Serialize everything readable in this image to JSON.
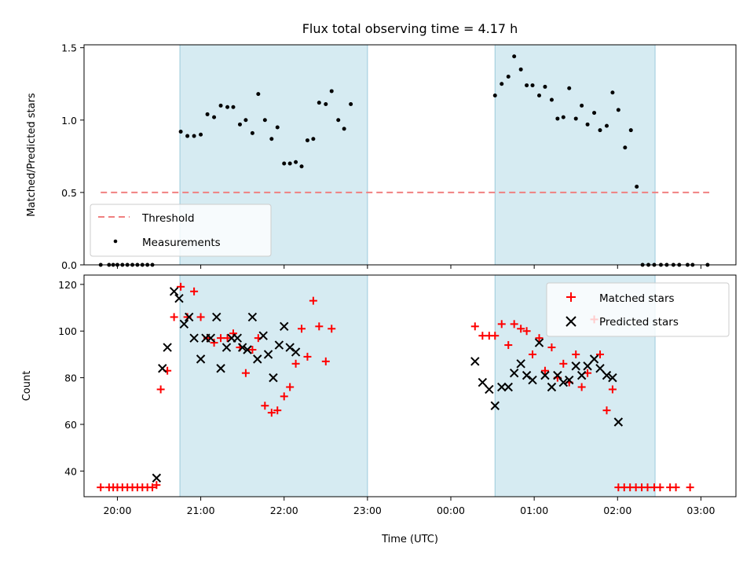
{
  "chart_data": [
    {
      "type": "scatter",
      "title": "Flux total observing time = 4.17 h",
      "xlabel": "",
      "ylabel": "Matched/Predicted stars",
      "xlim": [
        -0.4,
        7.42
      ],
      "ylim": [
        0,
        1.52
      ],
      "yticks": [
        "0.0",
        "0.5",
        "1.0",
        "1.5"
      ],
      "shaded_regions": [
        [
          0.75,
          3.0
        ],
        [
          4.53,
          6.45
        ]
      ],
      "threshold": {
        "name": "Threshold",
        "y": 0.5,
        "x_range": [
          -0.2,
          7.1
        ],
        "color": "#f08080"
      },
      "series": [
        {
          "name": "Measurements",
          "color": "#000000",
          "points": [
            [
              -0.2,
              0.0
            ],
            [
              -0.1,
              0.0
            ],
            [
              -0.05,
              0.0
            ],
            [
              0.0,
              0.0
            ],
            [
              0.06,
              0.0
            ],
            [
              0.12,
              0.0
            ],
            [
              0.18,
              0.0
            ],
            [
              0.24,
              0.0
            ],
            [
              0.3,
              0.0
            ],
            [
              0.36,
              0.0
            ],
            [
              0.42,
              0.0
            ],
            [
              0.76,
              0.92
            ],
            [
              0.84,
              0.89
            ],
            [
              0.92,
              0.89
            ],
            [
              1.0,
              0.9
            ],
            [
              1.08,
              1.04
            ],
            [
              1.16,
              1.02
            ],
            [
              1.24,
              1.1
            ],
            [
              1.32,
              1.09
            ],
            [
              1.39,
              1.09
            ],
            [
              1.47,
              0.97
            ],
            [
              1.54,
              1.0
            ],
            [
              1.62,
              0.91
            ],
            [
              1.69,
              1.18
            ],
            [
              1.77,
              1.0
            ],
            [
              1.85,
              0.87
            ],
            [
              1.92,
              0.95
            ],
            [
              2.0,
              0.7
            ],
            [
              2.07,
              0.7
            ],
            [
              2.14,
              0.71
            ],
            [
              2.21,
              0.68
            ],
            [
              2.28,
              0.86
            ],
            [
              2.35,
              0.87
            ],
            [
              2.42,
              1.12
            ],
            [
              2.5,
              1.11
            ],
            [
              2.57,
              1.2
            ],
            [
              2.65,
              1.0
            ],
            [
              2.72,
              0.94
            ],
            [
              2.8,
              1.11
            ],
            [
              4.53,
              1.17
            ],
            [
              4.61,
              1.25
            ],
            [
              4.69,
              1.3
            ],
            [
              4.76,
              1.44
            ],
            [
              4.84,
              1.35
            ],
            [
              4.91,
              1.24
            ],
            [
              4.98,
              1.24
            ],
            [
              5.06,
              1.17
            ],
            [
              5.13,
              1.23
            ],
            [
              5.21,
              1.14
            ],
            [
              5.28,
              1.01
            ],
            [
              5.35,
              1.02
            ],
            [
              5.42,
              1.22
            ],
            [
              5.5,
              1.01
            ],
            [
              5.57,
              1.1
            ],
            [
              5.64,
              0.97
            ],
            [
              5.72,
              1.05
            ],
            [
              5.79,
              0.93
            ],
            [
              5.87,
              0.96
            ],
            [
              5.94,
              1.19
            ],
            [
              6.01,
              1.07
            ],
            [
              6.09,
              0.81
            ],
            [
              6.16,
              0.93
            ],
            [
              6.23,
              0.54
            ],
            [
              6.3,
              0.0
            ],
            [
              6.37,
              0.0
            ],
            [
              6.44,
              0.0
            ],
            [
              6.52,
              0.0
            ],
            [
              6.59,
              0.0
            ],
            [
              6.67,
              0.0
            ],
            [
              6.74,
              0.0
            ],
            [
              6.84,
              0.0
            ],
            [
              6.9,
              0.0
            ],
            [
              7.08,
              0.0
            ]
          ]
        }
      ],
      "legend": {
        "position": "lower-left",
        "entries": [
          "Threshold",
          "Measurements"
        ]
      }
    },
    {
      "type": "scatter",
      "title": "",
      "xlabel": "Time (UTC)",
      "ylabel": "Count",
      "xlim": [
        -0.4,
        7.42
      ],
      "ylim": [
        29,
        124
      ],
      "yticks": [
        "40",
        "60",
        "80",
        "100",
        "120"
      ],
      "xticks": [
        "20:00",
        "21:00",
        "22:00",
        "23:00",
        "00:00",
        "01:00",
        "02:00",
        "03:00"
      ],
      "shaded_regions": [
        [
          0.75,
          3.0
        ],
        [
          4.53,
          6.45
        ]
      ],
      "series": [
        {
          "name": "Matched stars",
          "color": "#ff0000",
          "marker": "plus",
          "points": [
            [
              -0.2,
              33
            ],
            [
              -0.1,
              33
            ],
            [
              -0.05,
              33
            ],
            [
              0.0,
              33
            ],
            [
              0.06,
              33
            ],
            [
              0.12,
              33
            ],
            [
              0.18,
              33
            ],
            [
              0.24,
              33
            ],
            [
              0.3,
              33
            ],
            [
              0.36,
              33
            ],
            [
              0.42,
              33
            ],
            [
              0.47,
              34
            ],
            [
              0.52,
              75
            ],
            [
              0.6,
              83
            ],
            [
              0.68,
              106
            ],
            [
              0.76,
              119
            ],
            [
              0.84,
              106
            ],
            [
              0.92,
              117
            ],
            [
              1.0,
              106
            ],
            [
              1.08,
              97
            ],
            [
              1.16,
              95
            ],
            [
              1.24,
              97
            ],
            [
              1.32,
              97
            ],
            [
              1.39,
              99
            ],
            [
              1.47,
              93
            ],
            [
              1.54,
              82
            ],
            [
              1.62,
              92
            ],
            [
              1.69,
              97
            ],
            [
              1.77,
              68
            ],
            [
              1.85,
              65
            ],
            [
              1.92,
              66
            ],
            [
              2.0,
              72
            ],
            [
              2.07,
              76
            ],
            [
              2.14,
              86
            ],
            [
              2.21,
              101
            ],
            [
              2.28,
              89
            ],
            [
              2.35,
              113
            ],
            [
              2.42,
              102
            ],
            [
              2.5,
              87
            ],
            [
              2.57,
              101
            ],
            [
              4.29,
              102
            ],
            [
              4.38,
              98
            ],
            [
              4.46,
              98
            ],
            [
              4.53,
              98
            ],
            [
              4.61,
              103
            ],
            [
              4.69,
              94
            ],
            [
              4.76,
              103
            ],
            [
              4.84,
              101
            ],
            [
              4.91,
              100
            ],
            [
              4.98,
              90
            ],
            [
              5.06,
              97
            ],
            [
              5.13,
              83
            ],
            [
              5.21,
              93
            ],
            [
              5.28,
              80
            ],
            [
              5.35,
              86
            ],
            [
              5.42,
              78
            ],
            [
              5.5,
              90
            ],
            [
              5.57,
              76
            ],
            [
              5.64,
              82
            ],
            [
              5.72,
              105
            ],
            [
              5.79,
              90
            ],
            [
              5.87,
              66
            ],
            [
              5.94,
              75
            ],
            [
              6.01,
              33
            ],
            [
              6.08,
              33
            ],
            [
              6.15,
              33
            ],
            [
              6.22,
              33
            ],
            [
              6.29,
              33
            ],
            [
              6.36,
              33
            ],
            [
              6.44,
              33
            ],
            [
              6.51,
              33
            ],
            [
              6.63,
              33
            ],
            [
              6.7,
              33
            ],
            [
              6.87,
              33
            ]
          ]
        },
        {
          "name": "Predicted stars",
          "color": "#000000",
          "marker": "x",
          "points": [
            [
              0.47,
              37
            ],
            [
              0.54,
              84
            ],
            [
              0.6,
              93
            ],
            [
              0.68,
              117
            ],
            [
              0.74,
              114
            ],
            [
              0.8,
              103
            ],
            [
              0.86,
              106
            ],
            [
              0.92,
              97
            ],
            [
              1.0,
              88
            ],
            [
              1.06,
              97
            ],
            [
              1.12,
              97
            ],
            [
              1.19,
              106
            ],
            [
              1.24,
              84
            ],
            [
              1.31,
              93
            ],
            [
              1.37,
              97
            ],
            [
              1.44,
              97
            ],
            [
              1.5,
              93
            ],
            [
              1.56,
              92
            ],
            [
              1.62,
              106
            ],
            [
              1.68,
              88
            ],
            [
              1.75,
              98
            ],
            [
              1.81,
              90
            ],
            [
              1.87,
              80
            ],
            [
              1.94,
              94
            ],
            [
              2.0,
              102
            ],
            [
              2.07,
              93
            ],
            [
              2.14,
              91
            ],
            [
              4.29,
              87
            ],
            [
              4.38,
              78
            ],
            [
              4.46,
              75
            ],
            [
              4.53,
              68
            ],
            [
              4.61,
              76
            ],
            [
              4.69,
              76
            ],
            [
              4.76,
              82
            ],
            [
              4.84,
              86
            ],
            [
              4.91,
              81
            ],
            [
              4.98,
              79
            ],
            [
              5.06,
              95
            ],
            [
              5.13,
              81
            ],
            [
              5.21,
              76
            ],
            [
              5.28,
              81
            ],
            [
              5.35,
              78
            ],
            [
              5.42,
              79
            ],
            [
              5.5,
              85
            ],
            [
              5.57,
              81
            ],
            [
              5.64,
              85
            ],
            [
              5.72,
              88
            ],
            [
              5.79,
              84
            ],
            [
              5.87,
              81
            ],
            [
              5.94,
              80
            ],
            [
              6.01,
              61
            ]
          ]
        }
      ],
      "legend": {
        "position": "top-right",
        "entries": [
          "Matched stars",
          "Predicted stars"
        ]
      }
    }
  ]
}
